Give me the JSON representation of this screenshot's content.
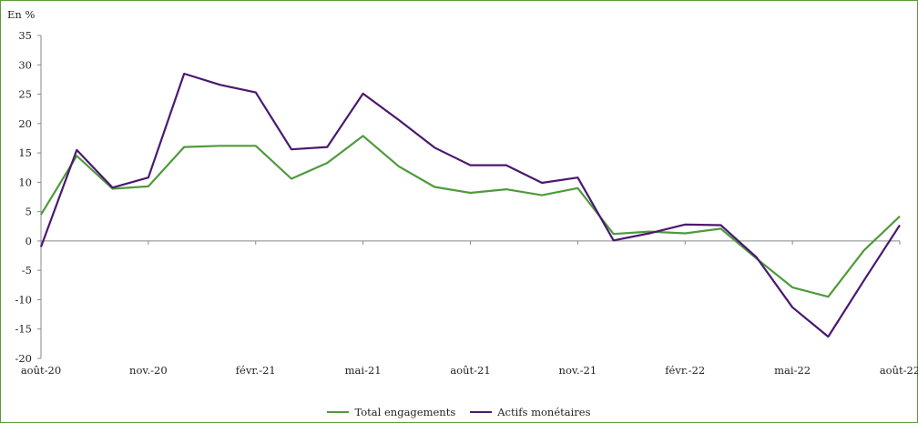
{
  "chart_data": {
    "type": "line",
    "ylabel": "En %",
    "ylim": [
      -20,
      35
    ],
    "yticks": [
      35,
      30,
      25,
      20,
      15,
      10,
      5,
      0,
      -5,
      -10,
      -15,
      -20
    ],
    "x": [
      "août-20",
      "sept.-20",
      "oct.-20",
      "nov.-20",
      "déc.-20",
      "janv.-21",
      "févr.-21",
      "mars-21",
      "avr.-21",
      "mai-21",
      "juin-21",
      "juil.-21",
      "août-21",
      "sept.-21",
      "oct.-21",
      "nov.-21",
      "déc.-21",
      "janv.-22",
      "févr.-22",
      "mars-22",
      "avr.-22",
      "mai-22",
      "juin-22",
      "juil.-22",
      "août-22"
    ],
    "xtick_labels": [
      {
        "index": 0,
        "label": "août-20"
      },
      {
        "index": 3,
        "label": "nov.-20"
      },
      {
        "index": 6,
        "label": "févr.-21"
      },
      {
        "index": 9,
        "label": "mai-21"
      },
      {
        "index": 12,
        "label": "août-21"
      },
      {
        "index": 15,
        "label": "nov.-21"
      },
      {
        "index": 18,
        "label": "févr.-22"
      },
      {
        "index": 21,
        "label": "mai-22"
      },
      {
        "index": 24,
        "label": "août-22"
      }
    ],
    "series": [
      {
        "name": "Total engagements",
        "color": "#4f9a3c",
        "values": [
          4.5,
          14.5,
          8.9,
          9.3,
          16.0,
          16.2,
          16.2,
          10.6,
          13.3,
          17.9,
          12.7,
          9.2,
          8.2,
          8.8,
          7.8,
          9.0,
          1.2,
          1.6,
          1.3,
          2.1,
          -3.0,
          -7.9,
          -9.5,
          -1.6,
          4.2
        ]
      },
      {
        "name": "Actifs monétaires",
        "color": "#4b1870",
        "values": [
          -1.0,
          15.5,
          9.1,
          10.8,
          28.5,
          26.6,
          25.3,
          15.6,
          16.0,
          25.1,
          20.6,
          15.9,
          12.9,
          12.9,
          9.9,
          10.8,
          0.1,
          1.3,
          2.8,
          2.7,
          -2.8,
          -11.3,
          -16.3,
          -6.7,
          2.7
        ]
      }
    ],
    "legend_position": "bottom"
  }
}
